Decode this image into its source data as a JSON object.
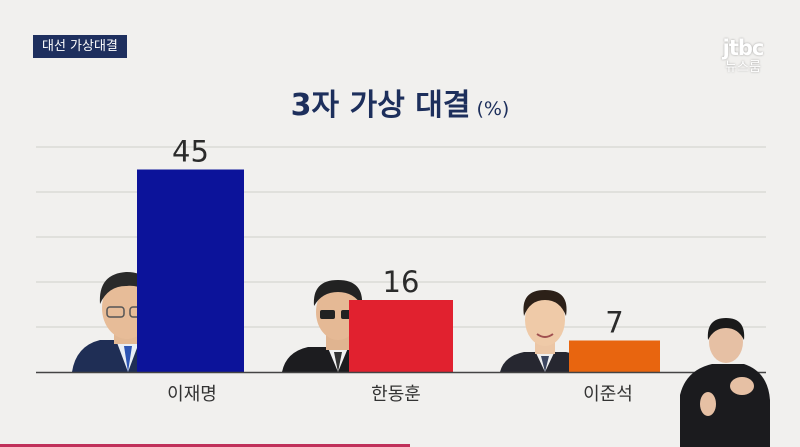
{
  "tag": "대선 가상대결",
  "logo": {
    "brand": "jtbc",
    "sub": "뉴스룸"
  },
  "colors": {
    "navy": "#1d2f5c",
    "blue": "#0c139a",
    "red": "#e1212f",
    "orange": "#e8650f"
  },
  "chart_data": {
    "type": "bar",
    "title": "3자 가상 대결",
    "unit": "(%)",
    "categories": [
      "이재명",
      "한동훈",
      "이준석"
    ],
    "values": [
      45,
      16,
      7
    ],
    "colors": [
      "#0c139a",
      "#e1212f",
      "#e8650f"
    ],
    "ylim": [
      0,
      50
    ],
    "grid": true
  }
}
